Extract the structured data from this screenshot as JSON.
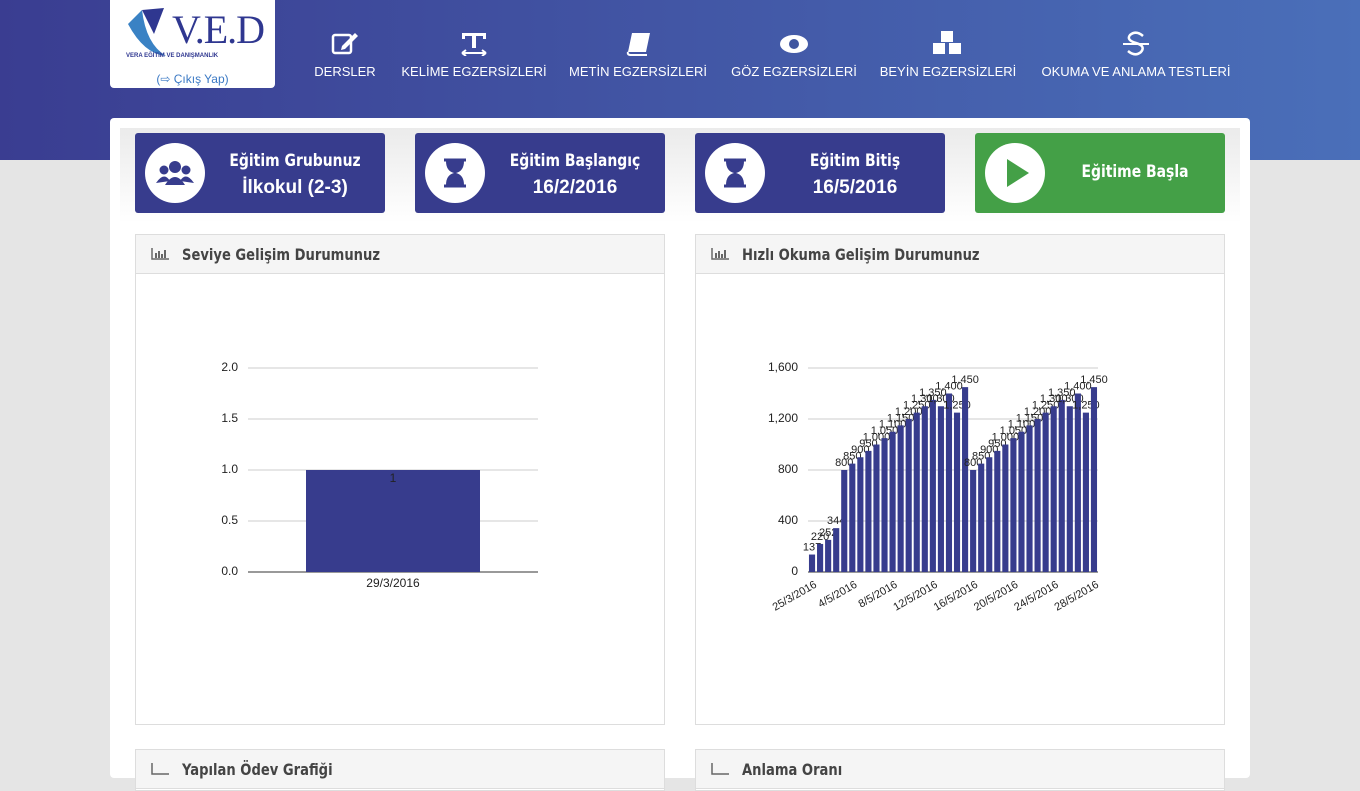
{
  "header": {
    "logo_title": "V.E.D",
    "logo_subtitle": "VERA EĞİTİM VE DANIŞMANLIK",
    "logout": "Çıkış Yap"
  },
  "nav": [
    "DERSLER",
    "KELİME EGZERSİZLERİ",
    "METİN EGZERSİZLERİ",
    "GÖZ EGZERSİZLERİ",
    "BEYİN EGZERSİZLERİ",
    "OKUMA VE ANLAMA TESTLERİ"
  ],
  "cards": [
    {
      "label": "Eğitim Grubunuz",
      "value": "İlkokul (2-3)"
    },
    {
      "label": "Eğitim Başlangıç",
      "value": "16/2/2016"
    },
    {
      "label": "Eğitim Bitiş",
      "value": "16/5/2016"
    },
    {
      "label": "Eğitime Başla"
    }
  ],
  "lower_panels": [
    "Yapılan Ödev Grafiği",
    "Anlama Oranı"
  ],
  "chart_data": [
    {
      "type": "bar",
      "title": "Seviye Gelişim Durumunuz",
      "categories": [
        "29/3/2016"
      ],
      "values": [
        1
      ],
      "color": "#373c8d",
      "ylim": [
        0,
        2
      ],
      "yticks": [
        {
          "value": 0,
          "label": "0.0"
        },
        {
          "value": 0.5,
          "label": "0.5"
        },
        {
          "value": 1,
          "label": "1.0"
        },
        {
          "value": 1.5,
          "label": "1.5"
        },
        {
          "value": 2,
          "label": "2.0"
        }
      ],
      "grid": true
    },
    {
      "type": "bar",
      "title": "Hızlı Okuma Gelişim Durumunuz",
      "categories": [
        "25/3/2016",
        null,
        null,
        null,
        null,
        "4/5/2016",
        null,
        null,
        null,
        null,
        "8/5/2016",
        null,
        null,
        null,
        null,
        "12/5/2016",
        null,
        null,
        null,
        null,
        "16/5/2016",
        null,
        null,
        null,
        null,
        "20/5/2016",
        null,
        null,
        null,
        null,
        "24/5/2016",
        null,
        null,
        null,
        null,
        "28/5/2016"
      ],
      "values": [
        137,
        220,
        252,
        344,
        800,
        850,
        900,
        950,
        1000,
        1050,
        1100,
        1150,
        1200,
        1250,
        1300,
        1350,
        1300,
        1400,
        1250,
        1450,
        800,
        850,
        900,
        950,
        1000,
        1050,
        1100,
        1150,
        1200,
        1250,
        1300,
        1350,
        1300,
        1400,
        1250,
        1450
      ],
      "value_labels": [
        "137",
        "220",
        "252",
        "344",
        "800",
        "850",
        "900",
        "950",
        "1,000",
        "1,050",
        "1,100",
        "1,150",
        "1,200",
        "1,250",
        "1,300",
        "1,350",
        "1,300",
        "1,400",
        "1,250",
        "1,450",
        "800",
        "850",
        "900",
        "950",
        "1,000",
        "1,050",
        "1,100",
        "1,150",
        "1,200",
        "1,250",
        "1,300",
        "1,350",
        "1,300",
        "1,400",
        "1,250",
        "1,450"
      ],
      "color": "#373c8d",
      "ylim": [
        0,
        1600
      ],
      "yticks": [
        0,
        400,
        800,
        {
          "value": 1200,
          "label": "1,200"
        },
        {
          "value": 1600,
          "label": "1,600"
        }
      ],
      "grid": true
    }
  ]
}
